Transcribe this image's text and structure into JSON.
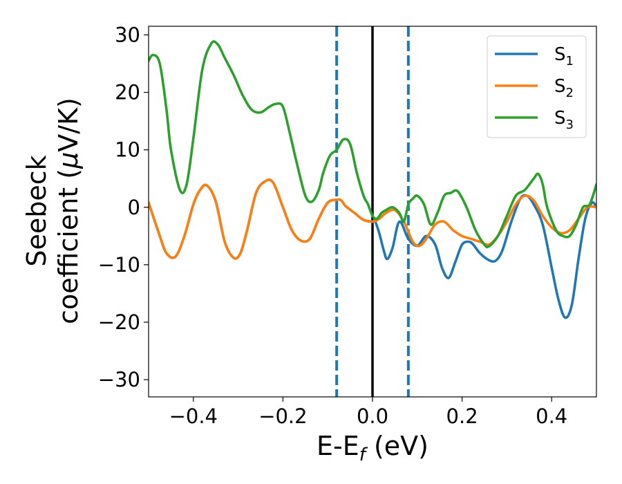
{
  "chart_data": {
    "type": "line",
    "xlabel": {
      "main": "E-E",
      "sub": "f",
      "tail": " (eV)"
    },
    "ylabel": {
      "line1": "Seebeck",
      "line2_prefix": "coefficient  (",
      "mu": "μ",
      "line2_suffix": "V/K)"
    },
    "xlim": [
      -0.5,
      0.5
    ],
    "ylim": [
      -33,
      31.5
    ],
    "xticks": [
      -0.4,
      -0.2,
      0.0,
      0.2,
      0.4
    ],
    "xtick_labels": [
      "−0.4",
      "−0.2",
      "0.0",
      "0.2",
      "0.4"
    ],
    "yticks": [
      30,
      20,
      10,
      0,
      -10,
      -20,
      -30
    ],
    "ytick_labels": [
      "30",
      "20",
      "10",
      "0",
      "−10",
      "−20",
      "−30"
    ],
    "grid": false,
    "legend_position": "top-right",
    "vlines": [
      {
        "x": -0.08,
        "style": "dashed",
        "color": "#1f77b4"
      },
      {
        "x": 0.0,
        "style": "solid",
        "color": "#000000"
      },
      {
        "x": 0.08,
        "style": "dashed",
        "color": "#1f77b4"
      }
    ],
    "series": [
      {
        "name": "S",
        "sub": "1",
        "color": "#1f77b4",
        "x": [
          -0.5,
          -0.475,
          -0.46,
          -0.44,
          -0.42,
          -0.4,
          -0.385,
          -0.37,
          -0.35,
          -0.33,
          -0.31,
          -0.295,
          -0.28,
          -0.26,
          -0.24,
          -0.222,
          -0.2,
          -0.18,
          -0.16,
          -0.14,
          -0.12,
          -0.1,
          -0.08,
          -0.07,
          -0.06,
          -0.04,
          -0.02,
          0.0,
          0.005,
          0.015,
          0.025,
          0.033,
          0.045,
          0.06,
          0.08,
          0.1,
          0.12,
          0.14,
          0.155,
          0.17,
          0.185,
          0.2,
          0.215,
          0.225,
          0.24,
          0.26,
          0.275,
          0.29,
          0.31,
          0.33,
          0.345,
          0.36,
          0.38,
          0.4,
          0.415,
          0.43,
          0.445,
          0.46,
          0.475,
          0.49,
          0.5
        ],
        "y": [
          0.8,
          -5,
          -8,
          -8.6,
          -5,
          0.5,
          3,
          3.8,
          1,
          -6,
          -8.8,
          -8,
          -4,
          2.5,
          4.5,
          4.3,
          0,
          -4,
          -5.8,
          -5.5,
          -2,
          0.8,
          1.3,
          1.2,
          0.2,
          -1,
          -2.2,
          -2.5,
          -2.3,
          -4.5,
          -7.5,
          -9,
          -7,
          -2.5,
          -5.5,
          -6.7,
          -5,
          -6.5,
          -10.5,
          -12.3,
          -9.5,
          -6.5,
          -6,
          -6.5,
          -8,
          -9.2,
          -9.3,
          -7.5,
          -2.5,
          1.5,
          2,
          0.5,
          -3,
          -10.5,
          -16,
          -19.2,
          -17,
          -9,
          -2,
          0.8,
          0
        ]
      },
      {
        "name": "S",
        "sub": "2",
        "color": "#ff7f0e",
        "x": [
          -0.5,
          -0.475,
          -0.46,
          -0.44,
          -0.42,
          -0.4,
          -0.385,
          -0.37,
          -0.35,
          -0.33,
          -0.31,
          -0.295,
          -0.28,
          -0.26,
          -0.24,
          -0.222,
          -0.2,
          -0.18,
          -0.16,
          -0.14,
          -0.12,
          -0.1,
          -0.08,
          -0.07,
          -0.06,
          -0.04,
          -0.02,
          0.0,
          0.015,
          0.03,
          0.05,
          0.07,
          0.09,
          0.105,
          0.12,
          0.14,
          0.16,
          0.18,
          0.2,
          0.22,
          0.24,
          0.26,
          0.28,
          0.3,
          0.32,
          0.34,
          0.36,
          0.38,
          0.4,
          0.42,
          0.44,
          0.46,
          0.48,
          0.5
        ],
        "y": [
          0.8,
          -5,
          -8,
          -8.6,
          -5,
          0.5,
          3,
          3.8,
          1,
          -6,
          -8.8,
          -8,
          -4,
          2.5,
          4.5,
          4.3,
          0,
          -4,
          -5.8,
          -5.5,
          -2,
          0.8,
          1.3,
          1.2,
          0.2,
          -1,
          -2.2,
          -2.5,
          -2,
          -1,
          -0.5,
          -2.5,
          -6,
          -6.7,
          -5.5,
          -3,
          -2.5,
          -4,
          -5,
          -5.5,
          -6,
          -6.5,
          -5,
          -2.5,
          0.5,
          2,
          1.2,
          -1.5,
          -3.5,
          -4.5,
          -4,
          -2,
          0,
          0
        ]
      },
      {
        "name": "S",
        "sub": "3",
        "color": "#2ca02c",
        "x": [
          -0.5,
          -0.49,
          -0.475,
          -0.46,
          -0.45,
          -0.43,
          -0.415,
          -0.4,
          -0.38,
          -0.36,
          -0.345,
          -0.33,
          -0.31,
          -0.29,
          -0.27,
          -0.25,
          -0.23,
          -0.215,
          -0.2,
          -0.185,
          -0.17,
          -0.15,
          -0.135,
          -0.12,
          -0.11,
          -0.095,
          -0.08,
          -0.065,
          -0.05,
          -0.035,
          -0.02,
          -0.01,
          0.0,
          0.01,
          0.02,
          0.03,
          0.045,
          0.06,
          0.07,
          0.08,
          0.09,
          0.1,
          0.115,
          0.13,
          0.145,
          0.16,
          0.175,
          0.19,
          0.21,
          0.23,
          0.25,
          0.26,
          0.28,
          0.3,
          0.32,
          0.34,
          0.36,
          0.37,
          0.38,
          0.39,
          0.41,
          0.425,
          0.44,
          0.455,
          0.47,
          0.485,
          0.5
        ],
        "y": [
          25.5,
          26.5,
          25,
          17,
          10,
          3,
          4,
          12,
          24,
          28.5,
          28.3,
          26,
          23,
          19.5,
          17,
          16.5,
          17.5,
          18,
          17.5,
          13,
          8,
          2,
          1,
          3,
          6,
          9,
          10,
          11.8,
          11,
          6,
          2,
          0.5,
          -1.5,
          -2,
          -1,
          -0.5,
          0,
          -1,
          -2.5,
          0.5,
          1.5,
          2,
          0.5,
          -3,
          -1,
          2,
          2.5,
          2.8,
          0,
          -4,
          -6.5,
          -6.8,
          -5,
          -1.5,
          2,
          3,
          5,
          5.8,
          4,
          0,
          -4,
          -5,
          -5,
          -3,
          0,
          0.5,
          4
        ]
      }
    ]
  }
}
